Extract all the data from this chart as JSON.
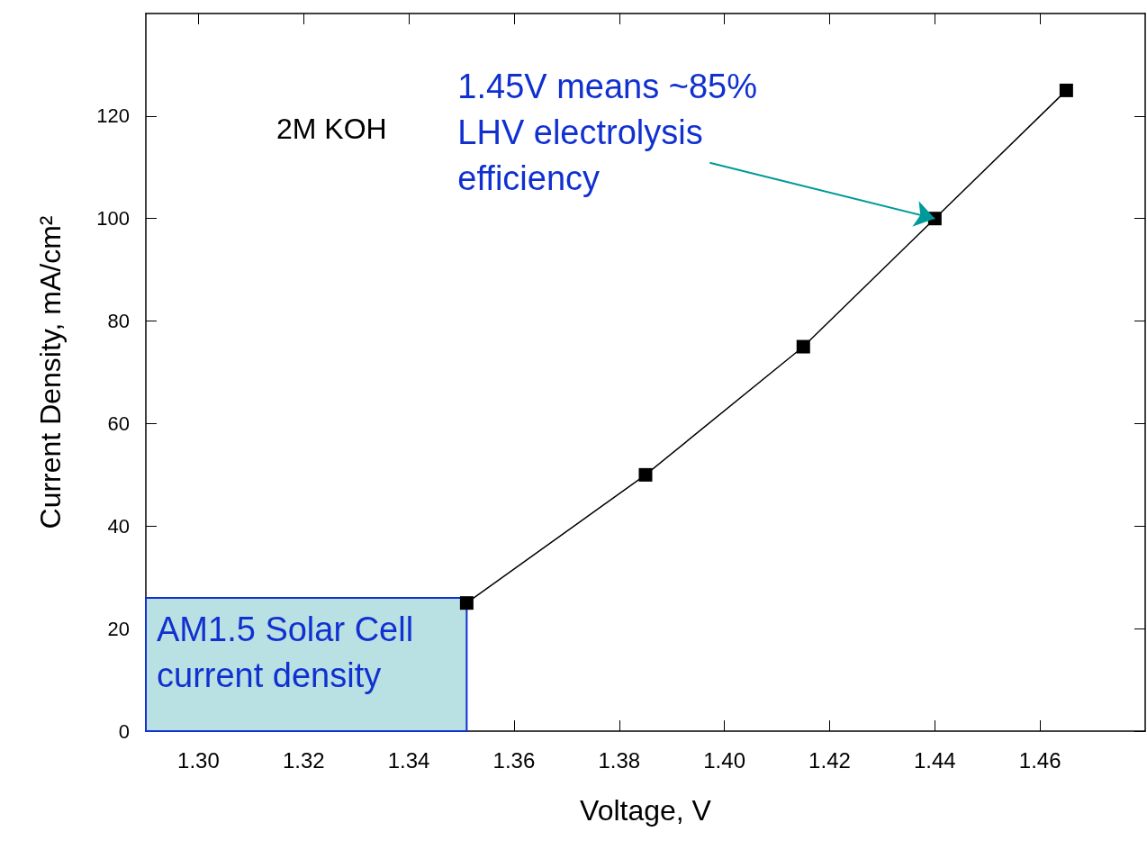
{
  "chart_data": {
    "type": "line",
    "xlabel": "Voltage, V",
    "ylabel": "Current Density, mA/cm²",
    "x": [
      1.351,
      1.385,
      1.415,
      1.44,
      1.465
    ],
    "series": [
      {
        "color": "#000000",
        "values": [
          25,
          50,
          75,
          100,
          125
        ]
      }
    ],
    "xlim": [
      1.29,
      1.48
    ],
    "xticks": [
      {
        "value": 1.3,
        "label": "1.30"
      },
      1.32,
      1.34,
      1.36,
      1.38,
      {
        "value": 1.4,
        "label": "1.40"
      },
      1.42,
      1.44,
      1.46
    ],
    "ylim": [
      0,
      140
    ],
    "yticks": [
      0,
      20,
      40,
      60,
      80,
      100,
      120
    ],
    "marker": "square",
    "line_style": "solid",
    "grid": false,
    "legend": false,
    "bands": [
      {
        "axis": "y",
        "from": 0,
        "to": 26,
        "label": "AM1.5 Solar Cell current density",
        "color": "#b9e0e3"
      }
    ],
    "annotations": [
      "2M KOH",
      {
        "text": "1.45V means ~85% LHV electrolysis efficiency",
        "x": 1.44,
        "y": 100
      }
    ]
  }
}
